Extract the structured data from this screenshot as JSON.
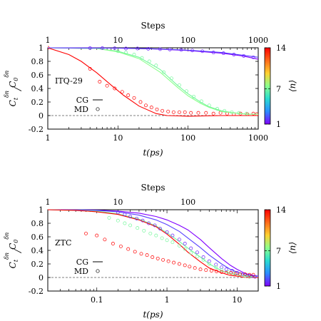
{
  "chart_data": [
    {
      "type": "line",
      "title": "",
      "annotation": "ITQ-29",
      "xlabel": "t(ps)",
      "x2label": "Steps",
      "ylabel": "C_t^{δn} / C_0^{δn}",
      "ylabel_parts": {
        "main": "C",
        "sub1": "t",
        "sup": "δn",
        "sep": "/",
        "main2": "C",
        "sub2": "0"
      },
      "xscale": "log",
      "xlim": [
        1,
        1000
      ],
      "ylim": [
        -0.2,
        1
      ],
      "xticks": [
        {
          "v": 1,
          "label": "1"
        },
        {
          "v": 10,
          "label": "10"
        },
        {
          "v": 100,
          "label": "100"
        },
        {
          "v": 1000,
          "label": "1000"
        }
      ],
      "x2ticks": [
        {
          "v": 1,
          "label": "1"
        },
        {
          "v": 10,
          "label": "10"
        },
        {
          "v": 100,
          "label": "100"
        },
        {
          "v": 1000,
          "label": "1000"
        }
      ],
      "yticks": [
        {
          "v": 1,
          "label": "1"
        },
        {
          "v": 0.8,
          "label": "0.8"
        },
        {
          "v": 0.6,
          "label": "0.6"
        },
        {
          "v": 0.4,
          "label": "0.4"
        },
        {
          "v": 0.2,
          "label": "0.2"
        },
        {
          "v": 0,
          "label": "0"
        },
        {
          "v": -0.2,
          "label": "-0.2"
        }
      ],
      "legend": {
        "position": "left",
        "entries": [
          {
            "label": "CG",
            "style": "line"
          },
          {
            "label": "MD",
            "style": "circle"
          }
        ]
      },
      "colorbar": {
        "label": "⟨n⟩",
        "min": 1,
        "max": 14,
        "ticks": [
          {
            "v": 14,
            "label": "14"
          },
          {
            "v": 7,
            "label": "7"
          },
          {
            "v": 1,
            "label": "1"
          }
        ],
        "colors": [
          "#8000ff",
          "#2a8cff",
          "#2adcd0",
          "#8cff8c",
          "#ffd030",
          "#ff6a1a",
          "#ff0000"
        ]
      },
      "series": [
        {
          "n": 14,
          "kind": "line",
          "x": [
            1,
            2,
            3,
            5,
            8,
            12,
            20,
            35,
            50,
            100,
            300,
            1000
          ],
          "y": [
            1,
            0.9,
            0.8,
            0.63,
            0.45,
            0.3,
            0.14,
            0.03,
            0.0,
            -0.01,
            0.0,
            0.0
          ]
        },
        {
          "n": 14,
          "kind": "circles",
          "x": [
            1,
            4,
            5.5,
            7,
            9,
            11.5,
            14,
            17,
            21,
            25,
            30,
            36,
            43,
            52,
            62,
            75,
            90,
            110,
            140,
            180,
            230,
            290,
            360,
            450,
            560,
            700,
            850,
            950
          ],
          "y": [
            1,
            0.69,
            0.5,
            0.44,
            0.4,
            0.35,
            0.3,
            0.26,
            0.2,
            0.15,
            0.12,
            0.09,
            0.07,
            0.06,
            0.05,
            0.05,
            0.05,
            0.04,
            0.04,
            0.04,
            0.03,
            0.04,
            0.03,
            0.02,
            0.03,
            0.02,
            0.03,
            0.02
          ]
        },
        {
          "n": 7,
          "kind": "line",
          "x": [
            1,
            5,
            10,
            20,
            40,
            70,
            100,
            150,
            200,
            300,
            450,
            700,
            1000
          ],
          "y": [
            1,
            0.99,
            0.95,
            0.86,
            0.68,
            0.45,
            0.32,
            0.2,
            0.13,
            0.07,
            0.04,
            0.02,
            0.02
          ]
        },
        {
          "n": 7.5,
          "kind": "line",
          "x": [
            1,
            5,
            10,
            20,
            40,
            70,
            100,
            150,
            200,
            300,
            450,
            700,
            1000
          ],
          "y": [
            1,
            0.99,
            0.94,
            0.84,
            0.64,
            0.42,
            0.29,
            0.18,
            0.12,
            0.06,
            0.04,
            0.02,
            0.02
          ]
        },
        {
          "n": 7,
          "kind": "circles",
          "x": [
            10,
            13,
            17,
            22,
            28,
            35,
            45,
            58,
            75,
            95,
            120,
            155,
            200,
            260,
            330,
            420,
            530,
            680
          ],
          "y": [
            0.95,
            0.93,
            0.9,
            0.85,
            0.8,
            0.74,
            0.64,
            0.55,
            0.45,
            0.36,
            0.28,
            0.21,
            0.15,
            0.1,
            0.07,
            0.05,
            0.04,
            0.03
          ]
        },
        {
          "n": 1,
          "kind": "line",
          "x": [
            1,
            10,
            30,
            100,
            300,
            600,
            1000
          ],
          "y": [
            1,
            0.995,
            0.985,
            0.96,
            0.92,
            0.88,
            0.83
          ]
        },
        {
          "n": 2,
          "kind": "line",
          "x": [
            1,
            10,
            30,
            100,
            300,
            600,
            1000
          ],
          "y": [
            1,
            0.995,
            0.985,
            0.965,
            0.93,
            0.89,
            0.86
          ]
        },
        {
          "n": 1.5,
          "kind": "circles",
          "x": [
            4,
            6,
            9,
            13,
            19,
            27,
            40,
            55,
            80,
            115,
            160,
            230,
            320,
            450,
            620,
            850
          ],
          "y": [
            0.995,
            0.995,
            0.993,
            0.99,
            0.99,
            0.985,
            0.98,
            0.975,
            0.97,
            0.96,
            0.95,
            0.93,
            0.92,
            0.9,
            0.88,
            0.86
          ]
        }
      ]
    },
    {
      "type": "line",
      "title": "",
      "annotation": "ZTC",
      "xlabel": "t(ps)",
      "x2label": "Steps",
      "ylabel": "C_t^{δn} / C_0^{δn}",
      "ylabel_parts": {
        "main": "C",
        "sub1": "t",
        "sup": "δn",
        "sep": "/",
        "main2": "C",
        "sub2": "0"
      },
      "xscale": "log",
      "xlim": [
        0.02,
        20
      ],
      "ylim": [
        -0.2,
        1
      ],
      "xticks": [
        {
          "v": 0.1,
          "label": "0.1"
        },
        {
          "v": 1,
          "label": "1"
        },
        {
          "v": 10,
          "label": "10"
        }
      ],
      "x2ticks": [
        {
          "v": 0.02,
          "label": "1"
        },
        {
          "v": 0.2,
          "label": "10"
        },
        {
          "v": 2,
          "label": "100"
        }
      ],
      "yticks": [
        {
          "v": 1,
          "label": "1"
        },
        {
          "v": 0.8,
          "label": "0.8"
        },
        {
          "v": 0.6,
          "label": "0.6"
        },
        {
          "v": 0.4,
          "label": "0.4"
        },
        {
          "v": 0.2,
          "label": "0.2"
        },
        {
          "v": 0,
          "label": "0"
        },
        {
          "v": -0.2,
          "label": "-0.2"
        }
      ],
      "legend": {
        "position": "left",
        "entries": [
          {
            "label": "CG",
            "style": "line"
          },
          {
            "label": "MD",
            "style": "circle"
          }
        ]
      },
      "colorbar": {
        "label": "⟨n⟩",
        "min": 1,
        "max": 14,
        "ticks": [
          {
            "v": 14,
            "label": "14"
          },
          {
            "v": 7,
            "label": "7"
          },
          {
            "v": 1,
            "label": "1"
          }
        ],
        "colors": [
          "#8000ff",
          "#2a8cff",
          "#2adcd0",
          "#8cff8c",
          "#ffd030",
          "#ff6a1a",
          "#ff0000"
        ]
      },
      "series": [
        {
          "n": 1,
          "kind": "line",
          "x": [
            0.02,
            0.1,
            0.2,
            0.4,
            0.7,
            1,
            1.5,
            2,
            3,
            4,
            6,
            8,
            10,
            13,
            17,
            20
          ],
          "y": [
            1,
            0.995,
            0.98,
            0.95,
            0.9,
            0.85,
            0.77,
            0.7,
            0.56,
            0.44,
            0.28,
            0.18,
            0.12,
            0.06,
            0.03,
            0.02
          ]
        },
        {
          "n": 2,
          "kind": "line",
          "x": [
            0.02,
            0.1,
            0.2,
            0.4,
            0.7,
            1,
            1.5,
            2,
            3,
            4,
            6,
            8,
            10,
            13,
            17,
            20
          ],
          "y": [
            1,
            0.99,
            0.97,
            0.92,
            0.85,
            0.78,
            0.68,
            0.58,
            0.44,
            0.33,
            0.2,
            0.12,
            0.08,
            0.04,
            0.02,
            0.02
          ]
        },
        {
          "n": 7,
          "kind": "line",
          "x": [
            0.02,
            0.1,
            0.2,
            0.4,
            0.7,
            1,
            1.5,
            2,
            3,
            4,
            6,
            8,
            10,
            13,
            17,
            20
          ],
          "y": [
            1,
            0.98,
            0.94,
            0.86,
            0.76,
            0.66,
            0.53,
            0.43,
            0.3,
            0.2,
            0.1,
            0.06,
            0.04,
            0.02,
            0.01,
            0.0
          ]
        },
        {
          "n": 14,
          "kind": "line",
          "x": [
            0.02,
            0.05,
            0.1,
            0.2,
            0.4,
            0.7,
            1,
            1.5,
            2,
            3,
            4,
            6,
            8,
            10,
            13,
            17,
            20
          ],
          "y": [
            1,
            0.99,
            0.97,
            0.93,
            0.85,
            0.75,
            0.64,
            0.49,
            0.37,
            0.23,
            0.14,
            0.07,
            0.03,
            0.02,
            0.0,
            0.0,
            0.0
          ]
        },
        {
          "n": 1.5,
          "kind": "circles",
          "x": [
            0.2,
            0.25,
            0.3,
            0.37,
            0.45,
            0.55,
            0.67,
            0.8,
            1,
            1.2,
            1.5,
            1.8,
            2.2,
            2.7,
            3.3,
            4,
            5,
            6,
            7,
            8.5,
            10,
            12,
            14,
            16,
            18
          ],
          "y": [
            0.96,
            0.93,
            0.9,
            0.87,
            0.84,
            0.8,
            0.77,
            0.72,
            0.67,
            0.62,
            0.56,
            0.5,
            0.43,
            0.37,
            0.3,
            0.24,
            0.19,
            0.15,
            0.12,
            0.1,
            0.07,
            0.05,
            0.03,
            0.02,
            0.01
          ]
        },
        {
          "n": 7,
          "kind": "circles",
          "x": [
            0.15,
            0.2,
            0.25,
            0.3,
            0.38,
            0.47,
            0.58,
            0.7,
            0.85,
            1,
            1.2,
            1.5,
            1.8,
            2.2,
            2.7,
            3.3,
            4,
            5,
            6,
            7.5,
            9,
            11,
            13,
            15
          ],
          "y": [
            0.88,
            0.84,
            0.8,
            0.77,
            0.73,
            0.69,
            0.65,
            0.62,
            0.58,
            0.55,
            0.52,
            0.47,
            0.42,
            0.36,
            0.31,
            0.26,
            0.2,
            0.15,
            0.11,
            0.08,
            0.06,
            0.04,
            0.02,
            0.01
          ]
        },
        {
          "n": 14,
          "kind": "circles",
          "x": [
            0.07,
            0.1,
            0.13,
            0.17,
            0.22,
            0.28,
            0.35,
            0.43,
            0.52,
            0.62,
            0.74,
            0.88,
            1.05,
            1.25,
            1.5,
            1.8,
            2.1,
            2.5,
            3,
            3.6,
            4.3,
            5.1,
            6,
            7,
            8.2,
            9.5,
            11,
            13,
            15,
            17
          ],
          "y": [
            0.65,
            0.62,
            0.56,
            0.5,
            0.46,
            0.42,
            0.38,
            0.35,
            0.33,
            0.3,
            0.28,
            0.26,
            0.24,
            0.22,
            0.2,
            0.18,
            0.16,
            0.14,
            0.12,
            0.11,
            0.1,
            0.09,
            0.08,
            0.07,
            0.07,
            0.06,
            0.05,
            0.05,
            0.04,
            0.04
          ]
        }
      ]
    }
  ]
}
